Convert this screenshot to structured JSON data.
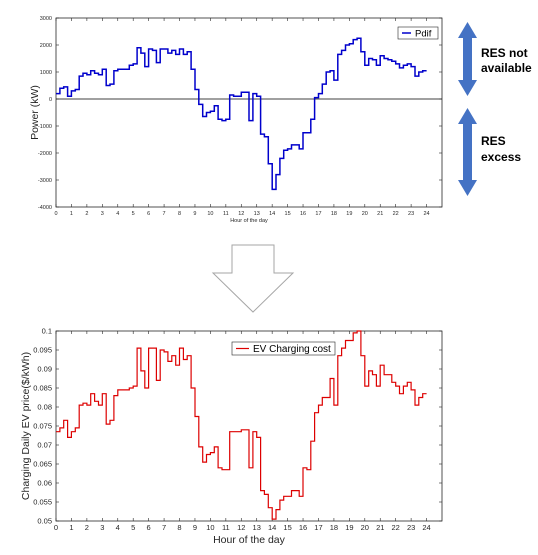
{
  "chart_data": [
    {
      "type": "line",
      "xlabel": "Hour of the day",
      "ylabel": "Power (kW)",
      "xlim": [
        0,
        25
      ],
      "ylim": [
        -4000,
        3000
      ],
      "xticks": [
        0,
        1,
        2,
        3,
        4,
        5,
        6,
        7,
        8,
        9,
        10,
        11,
        12,
        13,
        14,
        15,
        16,
        17,
        18,
        19,
        20,
        21,
        22,
        23,
        24
      ],
      "yticks": [
        -4000,
        -3000,
        -2000,
        -1000,
        0,
        1000,
        2000,
        3000
      ],
      "grid": false,
      "zero_line": true,
      "legend": "top-right",
      "series": [
        {
          "name": "Pdif",
          "color": "#0000cc",
          "x": [
            0.0,
            0.25,
            0.5,
            0.75,
            1.0,
            1.25,
            1.5,
            1.75,
            2.0,
            2.25,
            2.5,
            2.75,
            3.0,
            3.25,
            3.5,
            3.75,
            4.0,
            4.25,
            4.5,
            4.75,
            5.0,
            5.25,
            5.5,
            5.75,
            6.0,
            6.25,
            6.5,
            6.75,
            7.0,
            7.25,
            7.5,
            7.75,
            8.0,
            8.25,
            8.5,
            8.75,
            9.0,
            9.25,
            9.5,
            9.75,
            10.0,
            10.25,
            10.5,
            10.75,
            11.0,
            11.25,
            11.5,
            11.75,
            12.0,
            12.25,
            12.5,
            12.75,
            13.0,
            13.25,
            13.5,
            13.75,
            14.0,
            14.25,
            14.5,
            14.75,
            15.0,
            15.25,
            15.5,
            15.75,
            16.0,
            16.25,
            16.5,
            16.75,
            17.0,
            17.25,
            17.5,
            17.75,
            18.0,
            18.25,
            18.5,
            18.75,
            19.0,
            19.25,
            19.5,
            19.75,
            20.0,
            20.25,
            20.5,
            20.75,
            21.0,
            21.25,
            21.5,
            21.75,
            22.0,
            22.25,
            22.5,
            22.75,
            23.0,
            23.25,
            23.5,
            23.75
          ],
          "values": [
            200,
            400,
            450,
            100,
            300,
            350,
            850,
            950,
            900,
            1050,
            950,
            900,
            1100,
            500,
            550,
            1050,
            1100,
            1100,
            1100,
            1250,
            1300,
            1900,
            1700,
            1200,
            1850,
            1800,
            1350,
            1850,
            1850,
            1700,
            1800,
            1650,
            1850,
            1650,
            1750,
            1100,
            350,
            -200,
            -650,
            -500,
            -450,
            -250,
            -750,
            -800,
            -750,
            150,
            100,
            100,
            250,
            250,
            -800,
            200,
            100,
            -1300,
            -1400,
            -2400,
            -3350,
            -2800,
            -2200,
            -1900,
            -1850,
            -1700,
            -1700,
            -1850,
            -1250,
            -1250,
            -750,
            50,
            200,
            550,
            1000,
            1050,
            700,
            1650,
            1800,
            2000,
            2050,
            2200,
            2250,
            1750,
            1250,
            1500,
            1450,
            1250,
            1600,
            1500,
            1450,
            1400,
            1300,
            1150,
            1250,
            1300,
            1200,
            850,
            1000,
            1050
          ]
        }
      ]
    },
    {
      "type": "line",
      "xlabel": "Hour of the day",
      "ylabel": "Charging Daily EV price($/kWh)",
      "xlim": [
        0,
        25
      ],
      "ylim": [
        0.05,
        0.1
      ],
      "xticks": [
        0,
        1,
        2,
        3,
        4,
        5,
        6,
        7,
        8,
        9,
        10,
        11,
        12,
        13,
        14,
        15,
        16,
        17,
        18,
        19,
        20,
        21,
        22,
        23,
        24
      ],
      "yticks": [
        0.05,
        0.055,
        0.06,
        0.065,
        0.07,
        0.075,
        0.08,
        0.085,
        0.09,
        0.095,
        0.1
      ],
      "grid": false,
      "legend": "top-center",
      "series": [
        {
          "name": "EV Charging cost",
          "color": "#dd0000",
          "x": [
            0.0,
            0.25,
            0.5,
            0.75,
            1.0,
            1.25,
            1.5,
            1.75,
            2.0,
            2.25,
            2.5,
            2.75,
            3.0,
            3.25,
            3.5,
            3.75,
            4.0,
            4.25,
            4.5,
            4.75,
            5.0,
            5.25,
            5.5,
            5.75,
            6.0,
            6.25,
            6.5,
            6.75,
            7.0,
            7.25,
            7.5,
            7.75,
            8.0,
            8.25,
            8.5,
            8.75,
            9.0,
            9.25,
            9.5,
            9.75,
            10.0,
            10.25,
            10.5,
            10.75,
            11.0,
            11.25,
            11.5,
            11.75,
            12.0,
            12.25,
            12.5,
            12.75,
            13.0,
            13.25,
            13.5,
            13.75,
            14.0,
            14.25,
            14.5,
            14.75,
            15.0,
            15.25,
            15.5,
            15.75,
            16.0,
            16.25,
            16.5,
            16.75,
            17.0,
            17.25,
            17.5,
            17.75,
            18.0,
            18.25,
            18.5,
            18.75,
            19.0,
            19.25,
            19.5,
            19.75,
            20.0,
            20.25,
            20.5,
            20.75,
            21.0,
            21.25,
            21.5,
            21.75,
            22.0,
            22.25,
            22.5,
            22.75,
            23.0,
            23.25,
            23.5,
            23.75
          ],
          "values": [
            0.0735,
            0.0745,
            0.0765,
            0.072,
            0.0735,
            0.0745,
            0.0805,
            0.081,
            0.0805,
            0.0835,
            0.0815,
            0.0805,
            0.0835,
            0.0755,
            0.0765,
            0.083,
            0.0845,
            0.0845,
            0.0845,
            0.085,
            0.0855,
            0.0955,
            0.0895,
            0.085,
            0.0955,
            0.0955,
            0.087,
            0.095,
            0.0945,
            0.092,
            0.0935,
            0.091,
            0.0955,
            0.0925,
            0.0935,
            0.085,
            0.0775,
            0.0695,
            0.0655,
            0.0675,
            0.068,
            0.0695,
            0.064,
            0.0635,
            0.0635,
            0.0735,
            0.0735,
            0.0735,
            0.074,
            0.074,
            0.064,
            0.0735,
            0.072,
            0.058,
            0.057,
            0.0535,
            0.0505,
            0.053,
            0.0555,
            0.0565,
            0.0565,
            0.058,
            0.058,
            0.0565,
            0.064,
            0.0635,
            0.071,
            0.0785,
            0.0805,
            0.0825,
            0.0825,
            0.0875,
            0.0805,
            0.0935,
            0.0955,
            0.0975,
            0.0975,
            0.0995,
            0.1,
            0.0935,
            0.0855,
            0.0895,
            0.0885,
            0.0855,
            0.091,
            0.0885,
            0.0885,
            0.0865,
            0.0855,
            0.0835,
            0.0855,
            0.0865,
            0.0845,
            0.0805,
            0.0825,
            0.0835
          ]
        }
      ]
    }
  ],
  "annotations": {
    "res_not_available": [
      "RES not",
      "available"
    ],
    "res_excess": [
      "RES",
      "excess"
    ],
    "arrow_color": "#4472c4",
    "down_arrow_color": "#a6a6a6"
  }
}
